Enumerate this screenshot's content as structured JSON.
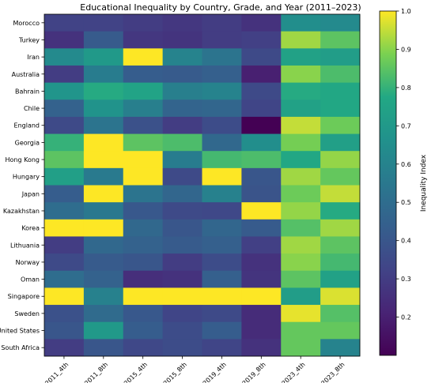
{
  "chart_data": {
    "type": "heatmap",
    "title": "Educational Inequality by Country, Grade, and Year (2011–2023)",
    "xlabel": "",
    "ylabel": "",
    "colormap": "viridis",
    "x": [
      "2011_4th",
      "2011_8th",
      "2015_4th",
      "2015_8th",
      "2019_4th",
      "2019_8th",
      "2023_4th",
      "2023_8th"
    ],
    "y": [
      "Morocco",
      "Turkey",
      "Iran",
      "Australia",
      "Bahrain",
      "Chile",
      "England",
      "Georgia",
      "Hong Kong",
      "Hungary",
      "Japan",
      "Kazakhstan",
      "Korea",
      "Lithuania",
      "Norway",
      "Oman",
      "Singapore",
      "Sweden",
      "United States",
      "South Africa"
    ],
    "values": [
      [
        0.32,
        0.32,
        0.3,
        0.28,
        0.3,
        0.26,
        0.65,
        0.63
      ],
      [
        0.26,
        0.42,
        0.28,
        0.27,
        0.3,
        0.31,
        0.92,
        0.85
      ],
      [
        0.63,
        0.7,
        1.0,
        0.6,
        0.53,
        0.35,
        0.74,
        0.72
      ],
      [
        0.3,
        0.57,
        0.43,
        0.42,
        0.44,
        0.2,
        0.9,
        0.83
      ],
      [
        0.68,
        0.78,
        0.75,
        0.58,
        0.6,
        0.35,
        0.78,
        0.77
      ],
      [
        0.45,
        0.67,
        0.58,
        0.46,
        0.47,
        0.33,
        0.74,
        0.77
      ],
      [
        0.35,
        0.53,
        0.38,
        0.3,
        0.36,
        0.05,
        0.95,
        0.87
      ],
      [
        0.8,
        1.0,
        0.85,
        0.83,
        0.48,
        0.65,
        0.88,
        0.73
      ],
      [
        0.85,
        1.0,
        1.0,
        0.57,
        0.82,
        0.83,
        0.77,
        0.91
      ],
      [
        0.73,
        0.56,
        1.0,
        0.35,
        1.0,
        0.4,
        0.92,
        0.86
      ],
      [
        0.43,
        1.0,
        0.53,
        0.47,
        0.59,
        0.39,
        0.87,
        0.95
      ],
      [
        0.5,
        0.55,
        0.41,
        0.35,
        0.34,
        1.0,
        0.91,
        0.78
      ],
      [
        1.0,
        1.0,
        0.48,
        0.4,
        0.47,
        0.42,
        0.84,
        0.92
      ],
      [
        0.3,
        0.48,
        0.45,
        0.42,
        0.44,
        0.31,
        0.92,
        0.85
      ],
      [
        0.35,
        0.42,
        0.4,
        0.3,
        0.36,
        0.26,
        0.9,
        0.82
      ],
      [
        0.5,
        0.45,
        0.25,
        0.26,
        0.44,
        0.27,
        0.85,
        0.74
      ],
      [
        1.0,
        0.59,
        1.0,
        1.0,
        1.0,
        1.0,
        0.72,
        0.97
      ],
      [
        0.38,
        0.49,
        0.41,
        0.33,
        0.35,
        0.24,
        0.98,
        0.84
      ],
      [
        0.4,
        0.7,
        0.43,
        0.36,
        0.43,
        0.24,
        0.86,
        0.86
      ],
      [
        0.3,
        0.4,
        0.34,
        0.36,
        0.33,
        0.26,
        0.86,
        0.6
      ]
    ],
    "colorbar": {
      "label": "Inequality Index",
      "range": [
        0.1,
        1.0
      ],
      "ticks": [
        0.2,
        0.3,
        0.4,
        0.5,
        0.6,
        0.7,
        0.8,
        0.9,
        1.0
      ],
      "tick_labels": [
        "0.2",
        "0.3",
        "0.4",
        "0.5",
        "0.6",
        "0.7",
        "0.8",
        "0.9",
        "1.0"
      ]
    }
  }
}
